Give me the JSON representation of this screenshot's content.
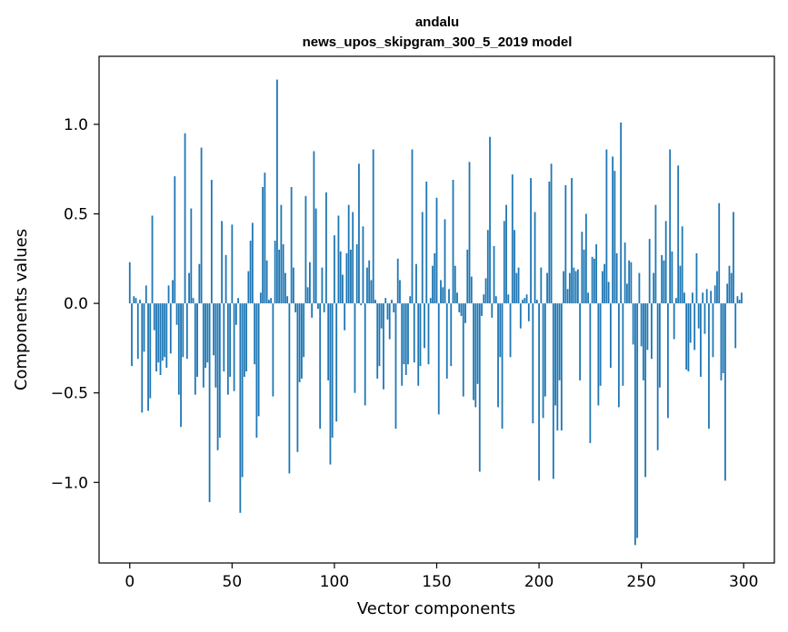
{
  "chart_data": {
    "type": "bar",
    "title": "andalu",
    "subtitle": "news_upos_skipgram_300_5_2019 model",
    "xlabel": "Vector components",
    "ylabel": "Components values",
    "xlim": [
      -15,
      315
    ],
    "ylim": [
      -1.45,
      1.38
    ],
    "xticks": [
      0,
      50,
      100,
      150,
      200,
      250,
      300
    ],
    "yticks": [
      -1.0,
      -0.5,
      0.0,
      0.5,
      1.0
    ],
    "ytick_labels": [
      "−1.0",
      "−0.5",
      "0.0",
      "0.5",
      "1.0"
    ],
    "grid": false,
    "legend": "none",
    "bar_color": "#1f77b4",
    "values": [
      0.23,
      -0.35,
      0.04,
      0.03,
      -0.31,
      0.02,
      -0.61,
      -0.27,
      0.1,
      -0.6,
      -0.53,
      0.49,
      -0.15,
      -0.38,
      -0.33,
      -0.4,
      -0.32,
      -0.3,
      -0.36,
      0.1,
      -0.28,
      0.13,
      0.71,
      -0.12,
      -0.51,
      -0.69,
      -0.3,
      0.95,
      -0.31,
      0.17,
      0.53,
      0.03,
      -0.51,
      -0.41,
      0.22,
      0.87,
      -0.47,
      -0.36,
      -0.33,
      -1.11,
      0.69,
      -0.29,
      -0.47,
      -0.82,
      -0.75,
      0.46,
      -0.38,
      0.27,
      -0.51,
      -0.41,
      0.44,
      -0.49,
      -0.12,
      0.03,
      -1.17,
      -0.97,
      -0.41,
      -0.38,
      0.18,
      0.35,
      0.45,
      -0.34,
      -0.75,
      -0.63,
      0.06,
      0.65,
      0.73,
      0.24,
      0.02,
      0.03,
      -0.52,
      0.35,
      1.25,
      0.3,
      0.55,
      0.33,
      0.17,
      0.04,
      -0.95,
      0.65,
      0.2,
      -0.05,
      -0.83,
      -0.44,
      -0.42,
      -0.3,
      0.6,
      0.09,
      0.23,
      -0.08,
      0.85,
      0.53,
      -0.03,
      -0.7,
      0.2,
      -0.05,
      0.62,
      -0.43,
      -0.9,
      -0.75,
      0.38,
      -0.66,
      0.49,
      0.29,
      0.16,
      -0.15,
      0.28,
      0.55,
      0.3,
      0.51,
      -0.5,
      0.33,
      0.78,
      -0.01,
      0.43,
      -0.57,
      0.2,
      0.24,
      0.13,
      0.86,
      0.02,
      -0.42,
      -0.35,
      -0.14,
      -0.48,
      0.03,
      -0.09,
      -0.2,
      0.02,
      -0.05,
      -0.7,
      0.25,
      0.13,
      -0.46,
      -0.34,
      -0.4,
      -0.34,
      0.04,
      0.86,
      -0.33,
      0.22,
      -0.46,
      -0.35,
      0.51,
      -0.25,
      0.68,
      -0.34,
      0.03,
      0.21,
      0.28,
      0.59,
      -0.62,
      0.13,
      0.09,
      0.47,
      -0.42,
      0.08,
      -0.35,
      0.69,
      0.21,
      0.06,
      -0.05,
      -0.07,
      -0.52,
      -0.11,
      0.3,
      0.79,
      0.15,
      -0.54,
      -0.58,
      -0.45,
      -0.94,
      -0.07,
      0.05,
      0.14,
      0.41,
      0.93,
      -0.08,
      0.32,
      0.04,
      -0.58,
      -0.3,
      -0.7,
      0.46,
      0.55,
      0.05,
      -0.3,
      0.72,
      0.41,
      0.17,
      0.2,
      -0.14,
      0.02,
      0.03,
      0.05,
      -0.1,
      0.7,
      -0.67,
      0.51,
      0.02,
      -0.99,
      0.2,
      -0.64,
      -0.52,
      0.17,
      0.68,
      0.78,
      -0.98,
      -0.57,
      -0.71,
      -0.43,
      -0.71,
      0.18,
      0.66,
      0.08,
      0.17,
      0.7,
      0.2,
      0.18,
      0.19,
      -0.43,
      0.4,
      0.3,
      0.5,
      0.06,
      -0.78,
      0.26,
      0.25,
      0.33,
      -0.57,
      -0.46,
      0.18,
      0.22,
      0.86,
      0.12,
      -0.36,
      0.82,
      0.74,
      0.28,
      -0.58,
      1.01,
      -0.46,
      0.34,
      0.11,
      0.24,
      0.23,
      -0.23,
      -1.35,
      -1.31,
      0.17,
      -0.24,
      -0.43,
      -0.97,
      -0.26,
      0.36,
      -0.31,
      0.17,
      0.55,
      -0.82,
      -0.47,
      0.27,
      0.24,
      0.46,
      -0.64,
      0.86,
      0.29,
      -0.2,
      0.03,
      0.77,
      0.21,
      0.43,
      0.06,
      -0.37,
      -0.38,
      -0.22,
      0.06,
      -0.26,
      0.28,
      -0.14,
      -0.41,
      0.06,
      -0.17,
      0.08,
      -0.7,
      0.07,
      -0.3,
      0.1,
      0.18,
      0.56,
      -0.43,
      -0.39,
      -0.99,
      0.11,
      0.21,
      0.17,
      0.51,
      -0.25,
      0.04,
      0.02,
      0.06
    ]
  }
}
